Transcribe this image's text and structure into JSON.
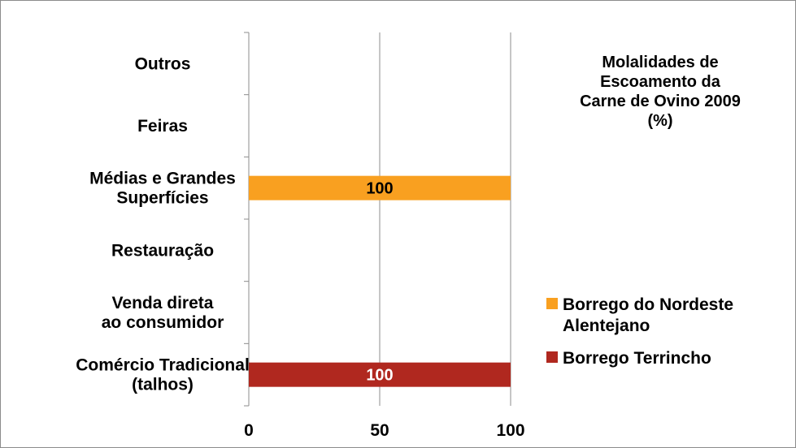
{
  "chart_data": {
    "type": "bar",
    "orientation": "horizontal",
    "title_lines": [
      "Molalidades de",
      "Escoamento da",
      "Carne de Ovino 2009",
      "(%)"
    ],
    "categories": [
      [
        "Comércio Tradicional",
        "(talhos)"
      ],
      [
        "Venda direta",
        "ao consumidor"
      ],
      [
        "Restauração"
      ],
      [
        "Médias e Grandes",
        "Superfícies"
      ],
      [
        "Feiras"
      ],
      [
        "Outros"
      ]
    ],
    "series": [
      {
        "name": "Borrego Terrincho",
        "color": "#b0281f",
        "values": [
          100,
          null,
          null,
          null,
          null,
          null
        ]
      },
      {
        "name": "Borrego do Nordeste Alentejano",
        "color": "#f9a020",
        "values": [
          null,
          null,
          null,
          100,
          null,
          null
        ]
      }
    ],
    "data_labels": {
      "Borrego Terrincho": "100",
      "Borrego do Nordeste Alentejano": "100"
    },
    "legend_lines": {
      "Borrego do Nordeste Alentejano": [
        "Borrego do Nordeste",
        "Alentejano"
      ],
      "Borrego Terrincho": [
        "Borrego Terrincho"
      ]
    },
    "legend_order": [
      "Borrego do Nordeste Alentejano",
      "Borrego Terrincho"
    ],
    "xticks": [
      0,
      50,
      100
    ],
    "xlim": [
      0,
      100
    ],
    "grid": true,
    "legend_position": "right"
  }
}
